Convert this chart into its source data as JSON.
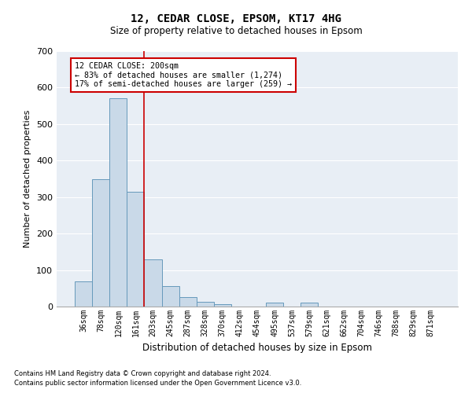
{
  "title1": "12, CEDAR CLOSE, EPSOM, KT17 4HG",
  "title2": "Size of property relative to detached houses in Epsom",
  "xlabel": "Distribution of detached houses by size in Epsom",
  "ylabel": "Number of detached properties",
  "bar_labels": [
    "36sqm",
    "78sqm",
    "120sqm",
    "161sqm",
    "203sqm",
    "245sqm",
    "287sqm",
    "328sqm",
    "370sqm",
    "412sqm",
    "454sqm",
    "495sqm",
    "537sqm",
    "579sqm",
    "621sqm",
    "662sqm",
    "704sqm",
    "746sqm",
    "788sqm",
    "829sqm",
    "871sqm"
  ],
  "bar_values": [
    68,
    350,
    570,
    315,
    130,
    57,
    25,
    14,
    7,
    0,
    0,
    10,
    0,
    10,
    0,
    0,
    0,
    0,
    0,
    0,
    0
  ],
  "bar_color": "#c9d9e8",
  "bar_edgecolor": "#6699bb",
  "vline_x": 3.5,
  "vline_color": "#cc0000",
  "annotation_title": "12 CEDAR CLOSE: 200sqm",
  "annotation_line1": "← 83% of detached houses are smaller (1,274)",
  "annotation_line2": "17% of semi-detached houses are larger (259) →",
  "annotation_box_color": "#ffffff",
  "annotation_border_color": "#cc0000",
  "ylim": [
    0,
    700
  ],
  "yticks": [
    0,
    100,
    200,
    300,
    400,
    500,
    600,
    700
  ],
  "footnote1": "Contains HM Land Registry data © Crown copyright and database right 2024.",
  "footnote2": "Contains public sector information licensed under the Open Government Licence v3.0.",
  "bg_color": "#e8eef5",
  "fig_bg_color": "#ffffff",
  "grid_color": "#ffffff",
  "title1_fontsize": 10,
  "title2_fontsize": 8.5,
  "ylabel_fontsize": 8,
  "xlabel_fontsize": 8.5,
  "tick_fontsize": 7,
  "annot_fontsize": 7.2,
  "footnote_fontsize": 6
}
